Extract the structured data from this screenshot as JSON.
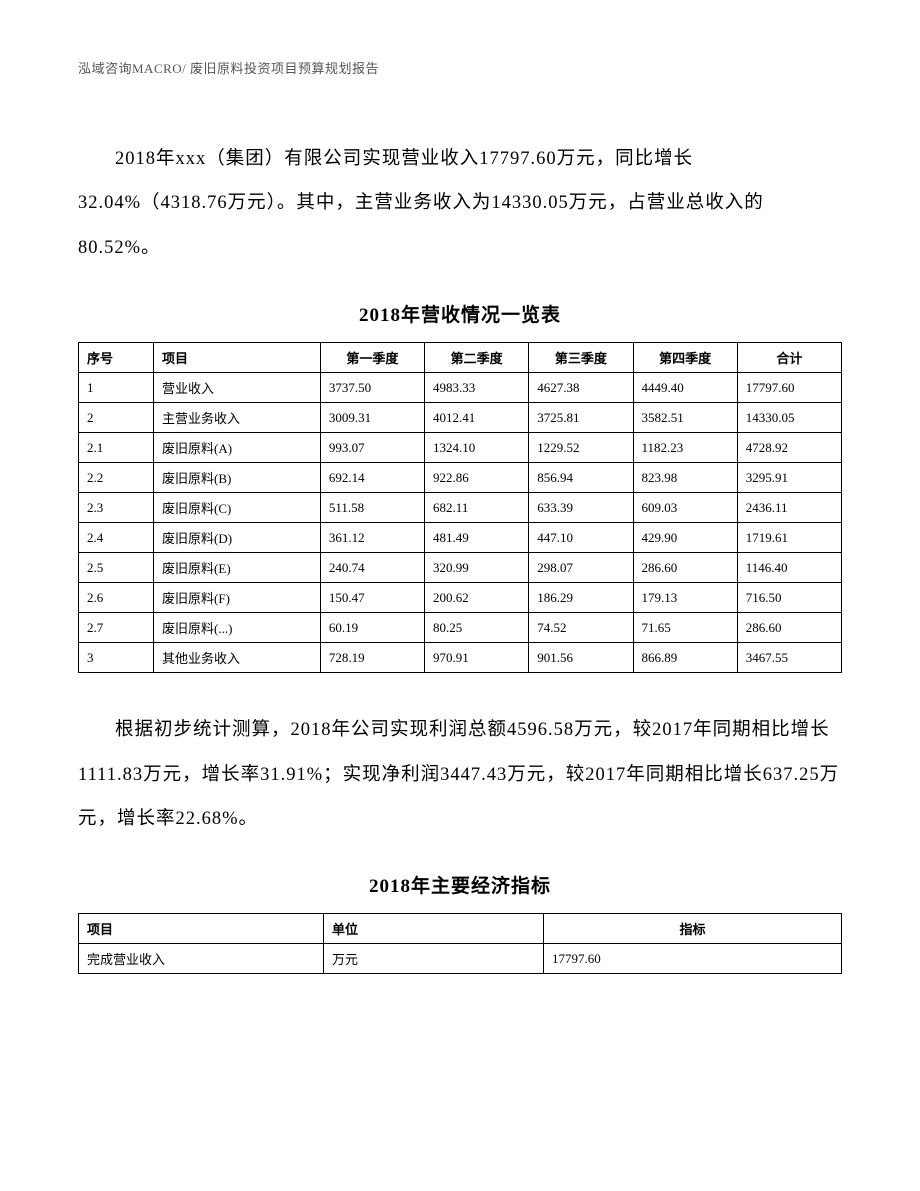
{
  "header": "泓域咨询MACRO/     废旧原料投资项目预算规划报告",
  "paragraph1": "2018年xxx（集团）有限公司实现营业收入17797.60万元，同比增长32.04%（4318.76万元）。其中，主营业务收入为14330.05万元，占营业总收入的80.52%。",
  "table1": {
    "title": "2018年营收情况一览表",
    "columns": [
      "序号",
      "项目",
      "第一季度",
      "第二季度",
      "第三季度",
      "第四季度",
      "合计"
    ],
    "rows": [
      [
        "1",
        "营业收入",
        "3737.50",
        "4983.33",
        "4627.38",
        "4449.40",
        "17797.60"
      ],
      [
        "2",
        "主营业务收入",
        "3009.31",
        "4012.41",
        "3725.81",
        "3582.51",
        "14330.05"
      ],
      [
        "2.1",
        "废旧原料(A)",
        "993.07",
        "1324.10",
        "1229.52",
        "1182.23",
        "4728.92"
      ],
      [
        "2.2",
        "废旧原料(B)",
        "692.14",
        "922.86",
        "856.94",
        "823.98",
        "3295.91"
      ],
      [
        "2.3",
        "废旧原料(C)",
        "511.58",
        "682.11",
        "633.39",
        "609.03",
        "2436.11"
      ],
      [
        "2.4",
        "废旧原料(D)",
        "361.12",
        "481.49",
        "447.10",
        "429.90",
        "1719.61"
      ],
      [
        "2.5",
        "废旧原料(E)",
        "240.74",
        "320.99",
        "298.07",
        "286.60",
        "1146.40"
      ],
      [
        "2.6",
        "废旧原料(F)",
        "150.47",
        "200.62",
        "186.29",
        "179.13",
        "716.50"
      ],
      [
        "2.7",
        "废旧原料(...)",
        "60.19",
        "80.25",
        "74.52",
        "71.65",
        "286.60"
      ],
      [
        "3",
        "其他业务收入",
        "728.19",
        "970.91",
        "901.56",
        "866.89",
        "3467.55"
      ]
    ]
  },
  "paragraph2": "根据初步统计测算，2018年公司实现利润总额4596.58万元，较2017年同期相比增长1111.83万元，增长率31.91%；实现净利润3447.43万元，较2017年同期相比增长637.25万元，增长率22.68%。",
  "table2": {
    "title": "2018年主要经济指标",
    "columns": [
      "项目",
      "单位",
      "指标"
    ],
    "rows": [
      [
        "完成营业收入",
        "万元",
        "17797.60"
      ]
    ]
  }
}
